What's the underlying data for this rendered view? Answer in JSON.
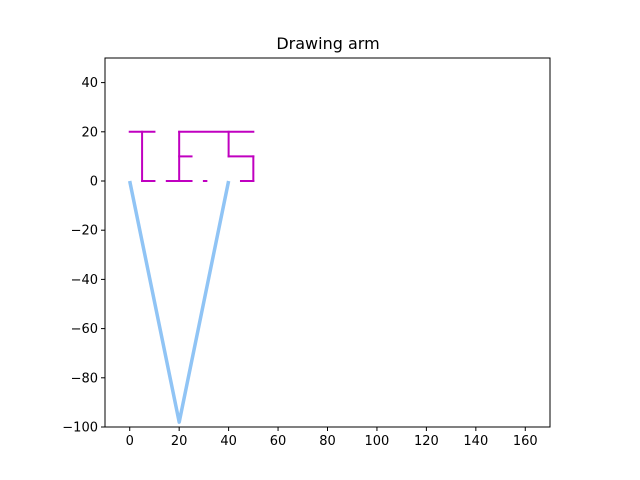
{
  "chart_data": {
    "type": "line",
    "title": "Drawing arm",
    "xlabel": "",
    "ylabel": "",
    "xlim": [
      -10,
      170
    ],
    "ylim": [
      -100,
      50
    ],
    "x_ticks": [
      0,
      20,
      40,
      60,
      80,
      100,
      120,
      140,
      160
    ],
    "y_ticks": [
      -100,
      -80,
      -60,
      -40,
      -20,
      0,
      20,
      40
    ],
    "x_tick_labels": [
      "0",
      "20",
      "40",
      "60",
      "80",
      "100",
      "120",
      "140",
      "160"
    ],
    "y_tick_labels": [
      "−100",
      "−80",
      "−60",
      "−40",
      "−20",
      "0",
      "20",
      "40"
    ],
    "grid": false,
    "series": [
      {
        "role": "arm",
        "color": "#90c4f5",
        "points": [
          [
            0,
            0
          ],
          [
            20,
            -98
          ],
          [
            40,
            0
          ]
        ]
      },
      {
        "role": "drawing",
        "color": "#c000c0",
        "segments": [
          [
            [
              0,
              20
            ],
            [
              10,
              20
            ]
          ],
          [
            [
              5,
              20
            ],
            [
              5,
              0
            ]
          ],
          [
            [
              5,
              0
            ],
            [
              10,
              0
            ]
          ],
          [
            [
              15,
              0
            ],
            [
              25,
              0
            ]
          ],
          [
            [
              20,
              0
            ],
            [
              20,
              20
            ]
          ],
          [
            [
              20,
              20
            ],
            [
              50,
              20
            ]
          ],
          [
            [
              20,
              10
            ],
            [
              25,
              10
            ]
          ],
          [
            [
              30,
              0
            ],
            [
              31,
              0
            ]
          ],
          [
            [
              40,
              20
            ],
            [
              40,
              10
            ]
          ],
          [
            [
              40,
              10
            ],
            [
              50,
              10
            ]
          ],
          [
            [
              50,
              10
            ],
            [
              50,
              0
            ]
          ],
          [
            [
              50,
              0
            ],
            [
              45,
              0
            ]
          ]
        ]
      }
    ]
  }
}
